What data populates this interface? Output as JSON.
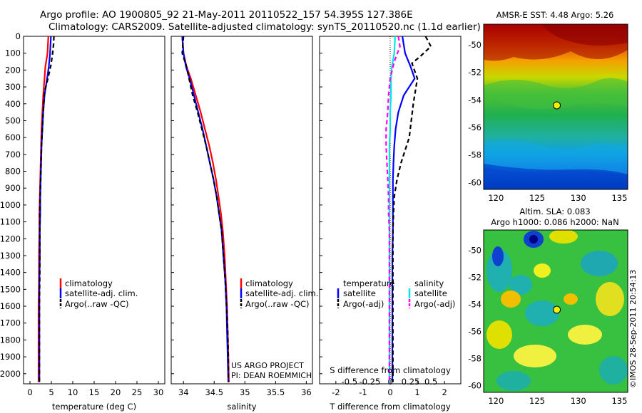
{
  "title_lines": [
    "Argo profile: AO 1900805_92 21-May-2011 20110522_157 54.395S 127.386E",
    "Climatology: CARS2009. Satellite-adjusted climatology: synTS_20110520.nc (1.1d earlier)"
  ],
  "watermark": "©IMOS 28-Sep-2011 20:54:13",
  "project_credit": [
    "US ARGO PROJECT",
    "PI: DEAN ROEMMICH"
  ],
  "legends": {
    "profile": [
      "climatology",
      "satellite-adj. clim.",
      "Argo(..raw -QC)"
    ],
    "diff_headers": [
      "temperature",
      "salinity"
    ],
    "diff_temperature": [
      "satellite",
      "Argo(-adj)"
    ],
    "diff_salinity": [
      "satellite",
      "Argo(-adj)"
    ]
  },
  "colors": {
    "climatology": "#ff0000",
    "satellite": "#0000ff",
    "argo": "#000000",
    "s_satellite": "#00e5e5",
    "s_argo": "#ff00ff"
  },
  "chart_data": [
    {
      "type": "line",
      "panel": "temperature",
      "xlabel": "temperature (deg C)",
      "ylabel": "",
      "xlim": [
        -1.5,
        31.5
      ],
      "ylim": [
        2060,
        0
      ],
      "xticks": [
        0,
        5,
        10,
        15,
        20,
        25,
        30
      ],
      "yticks": [
        0,
        100,
        200,
        300,
        400,
        500,
        600,
        700,
        800,
        900,
        1000,
        1100,
        1200,
        1300,
        1400,
        1500,
        1600,
        1700,
        1800,
        1900,
        2000
      ],
      "series": [
        {
          "name": "climatology",
          "color": "#ff0000",
          "dash": "",
          "x": [
            4.3,
            4.1,
            3.6,
            3.4,
            3.1,
            2.9,
            2.7,
            2.6,
            2.5,
            2.4,
            2.3,
            2.2,
            2.2,
            2.1,
            2.1,
            2.0,
            2.0,
            2.0,
            2.0
          ],
          "y": [
            0,
            100,
            180,
            250,
            350,
            450,
            550,
            650,
            750,
            850,
            950,
            1050,
            1150,
            1300,
            1450,
            1600,
            1750,
            1900,
            2050
          ]
        },
        {
          "name": "satellite-adj. clim.",
          "color": "#0000ff",
          "dash": "",
          "x": [
            4.9,
            4.7,
            4.4,
            4.0,
            3.4,
            3.1,
            2.9,
            2.7,
            2.6,
            2.5,
            2.4,
            2.4,
            2.3,
            2.3,
            2.2,
            2.2,
            2.2,
            2.2,
            2.2
          ],
          "y": [
            0,
            100,
            180,
            250,
            350,
            450,
            550,
            650,
            750,
            850,
            950,
            1050,
            1150,
            1300,
            1450,
            1600,
            1750,
            1900,
            2050
          ]
        },
        {
          "name": "Argo(..raw -QC)",
          "color": "#000000",
          "dash": "6,4",
          "x": [
            5.6,
            5.5,
            5.3,
            4.9,
            4.2,
            3.4,
            3.1,
            2.9,
            2.7,
            2.6,
            2.5,
            2.4,
            2.3,
            2.3,
            2.3,
            2.2,
            2.2,
            2.2,
            2.2
          ],
          "y": [
            0,
            50,
            100,
            170,
            250,
            330,
            450,
            550,
            650,
            750,
            850,
            950,
            1050,
            1200,
            1400,
            1600,
            1800,
            1950,
            2050
          ]
        }
      ]
    },
    {
      "type": "line",
      "panel": "salinity",
      "xlabel": "salinity",
      "ylabel": "",
      "xlim": [
        33.8,
        36.1
      ],
      "ylim": [
        2060,
        0
      ],
      "xticks": [
        34,
        34.5,
        35,
        35.5,
        36
      ],
      "xtick_labels": [
        "34",
        "34.5",
        "35",
        "35.5",
        "36"
      ],
      "series": [
        {
          "name": "climatology",
          "color": "#ff0000",
          "dash": "",
          "x": [
            33.98,
            34.0,
            34.05,
            34.12,
            34.2,
            34.28,
            34.35,
            34.42,
            34.48,
            34.53,
            34.57,
            34.61,
            34.64,
            34.67,
            34.69,
            34.71,
            34.72,
            34.73,
            34.74
          ],
          "y": [
            0,
            100,
            180,
            250,
            350,
            450,
            550,
            650,
            750,
            850,
            950,
            1050,
            1150,
            1300,
            1450,
            1600,
            1750,
            1900,
            2050
          ]
        },
        {
          "name": "satellite-adj. clim.",
          "color": "#0000ff",
          "dash": "",
          "x": [
            33.98,
            34.0,
            34.04,
            34.1,
            34.17,
            34.24,
            34.31,
            34.37,
            34.43,
            34.49,
            34.54,
            34.58,
            34.62,
            34.65,
            34.68,
            34.7,
            34.71,
            34.72,
            34.73
          ],
          "y": [
            0,
            100,
            180,
            250,
            350,
            450,
            550,
            650,
            750,
            850,
            950,
            1050,
            1150,
            1300,
            1450,
            1600,
            1750,
            1900,
            2050
          ]
        },
        {
          "name": "Argo(..raw -QC)",
          "color": "#000000",
          "dash": "6,4",
          "x": [
            34.0,
            33.98,
            34.05,
            34.09,
            34.15,
            34.23,
            34.3,
            34.37,
            34.43,
            34.49,
            34.54,
            34.58,
            34.62,
            34.65,
            34.68,
            34.7,
            34.72,
            34.73,
            34.73
          ],
          "y": [
            0,
            100,
            180,
            250,
            350,
            450,
            550,
            650,
            750,
            850,
            950,
            1050,
            1150,
            1300,
            1450,
            1600,
            1750,
            1900,
            2050
          ]
        }
      ]
    },
    {
      "type": "line",
      "panel": "difference",
      "xlabel": "T difference from climatology",
      "top_label": "S difference from climatology",
      "xlim": [
        -2.6,
        2.6
      ],
      "ylim": [
        2060,
        0
      ],
      "xticks_T": [
        -2,
        -1,
        0,
        1,
        2
      ],
      "xticks_S_labels": [
        "-0.5",
        "-0.25",
        "0",
        "0.25",
        "0.5"
      ],
      "xticks_S_values": [
        -0.5,
        -0.25,
        0,
        0.25,
        0.5
      ],
      "S_to_T_factor": 3.0,
      "series": [
        {
          "name": "temperature satellite",
          "color": "#0000ff",
          "dash": "",
          "x": [
            0.45,
            0.55,
            0.75,
            0.9,
            0.5,
            0.3,
            0.2,
            0.15,
            0.12,
            0.1,
            0.1,
            0.1,
            0.1,
            0.08,
            0.08,
            0.08,
            0.08,
            0.08,
            0.08
          ],
          "y": [
            0,
            100,
            180,
            250,
            350,
            450,
            550,
            650,
            750,
            850,
            950,
            1050,
            1150,
            1300,
            1450,
            1600,
            1750,
            1900,
            2050
          ]
        },
        {
          "name": "temperature Argo(-adj)",
          "color": "#000000",
          "dash": "6,4",
          "x": [
            1.3,
            1.5,
            1.1,
            0.8,
            1.0,
            0.85,
            0.7,
            0.4,
            0.25,
            0.15,
            0.12,
            0.1,
            0.1,
            0.1,
            0.1,
            0.1,
            0.1,
            0.1,
            0.1
          ],
          "y": [
            0,
            60,
            120,
            160,
            250,
            400,
            600,
            750,
            850,
            950,
            1050,
            1150,
            1300,
            1450,
            1600,
            1750,
            1850,
            1950,
            2050
          ]
        },
        {
          "name": "salinity satellite",
          "color": "#00e5e5",
          "dash": "",
          "x": [
            0.06,
            0.05,
            0.02,
            0.01,
            0.01,
            0.0,
            0.0,
            -0.01,
            -0.01,
            -0.01,
            -0.01,
            -0.01,
            -0.01,
            -0.01,
            -0.01,
            -0.01,
            -0.01,
            -0.01,
            -0.01
          ],
          "y": [
            0,
            100,
            180,
            250,
            350,
            450,
            550,
            650,
            750,
            850,
            950,
            1050,
            1150,
            1300,
            1450,
            1600,
            1750,
            1900,
            2050
          ]
        },
        {
          "name": "salinity Argo(-adj)",
          "color": "#ff00ff",
          "dash": "6,4",
          "x": [
            0.1,
            0.12,
            0.05,
            0.0,
            -0.02,
            -0.03,
            -0.05,
            -0.05,
            -0.04,
            -0.03,
            -0.02,
            -0.02,
            -0.01,
            -0.01,
            -0.01,
            -0.01,
            -0.01,
            -0.01,
            -0.01
          ],
          "y": [
            0,
            60,
            150,
            250,
            350,
            450,
            550,
            650,
            750,
            850,
            950,
            1050,
            1150,
            1300,
            1450,
            1600,
            1750,
            1900,
            2050
          ]
        }
      ]
    },
    {
      "type": "heatmap",
      "panel": "sst_map",
      "title": "AMSR-E SST: 4.48 Argo: 5.26",
      "xlim": [
        118.5,
        136
      ],
      "ylim": [
        -60.5,
        -48.5
      ],
      "xticks": [
        120,
        125,
        130,
        135
      ],
      "yticks": [
        -50,
        -52,
        -54,
        -56,
        -58,
        -60
      ],
      "argo_position": {
        "lon": 127.386,
        "lat": -54.395
      }
    },
    {
      "type": "heatmap",
      "panel": "sla_map",
      "title_lines": [
        "Altim. SLA: 0.083",
        "Argo h1000: 0.086 h2000: NaN"
      ],
      "xlim": [
        118.5,
        136
      ],
      "ylim": [
        -60.5,
        -48.5
      ],
      "xticks": [
        120,
        125,
        130,
        135
      ],
      "yticks": [
        -50,
        -52,
        -54,
        -56,
        -58,
        -60
      ],
      "argo_position": {
        "lon": 127.386,
        "lat": -54.395
      }
    }
  ]
}
